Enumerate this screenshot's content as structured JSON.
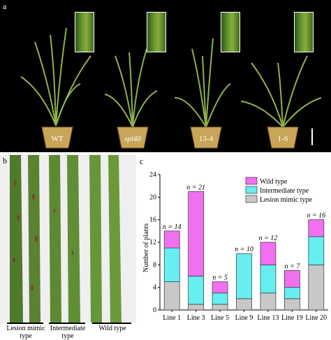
{
  "panel_a": {
    "letter": "a",
    "plants": [
      {
        "label": "WT"
      },
      {
        "label": "spl40"
      },
      {
        "label": "13-4"
      },
      {
        "label": "1-6"
      }
    ]
  },
  "panel_b": {
    "letter": "b",
    "groups": [
      {
        "label": "Lesion mimic type"
      },
      {
        "label": "Intermediate type"
      },
      {
        "label": "Wild type"
      }
    ]
  },
  "panel_c": {
    "letter": "c"
  },
  "chart_data": {
    "type": "bar",
    "stacked": true,
    "categories": [
      "Line 1",
      "Line 3",
      "Line 5",
      "Line 9",
      "Line 13",
      "Line 19",
      "Line 20"
    ],
    "ylabel": "Number of plants",
    "ylim": [
      0,
      24
    ],
    "yticks": [
      0,
      4,
      8,
      12,
      16,
      20,
      24
    ],
    "legend_position": "top-right",
    "series": [
      {
        "name": "Lesion mimic type",
        "color": "#c8c8c8",
        "values": [
          5,
          1,
          1,
          2,
          3,
          2,
          8
        ]
      },
      {
        "name": "Intermediate type",
        "color": "#66eef0",
        "values": [
          6,
          5,
          2,
          8,
          5,
          2,
          5
        ]
      },
      {
        "name": "Wild type",
        "color": "#f070f0",
        "values": [
          3,
          15,
          2,
          0,
          4,
          3,
          3
        ]
      }
    ],
    "n_labels": [
      "n = 14",
      "n = 21",
      "n = 5",
      "n = 10",
      "n = 12",
      "n = 7",
      "n = 16"
    ]
  }
}
